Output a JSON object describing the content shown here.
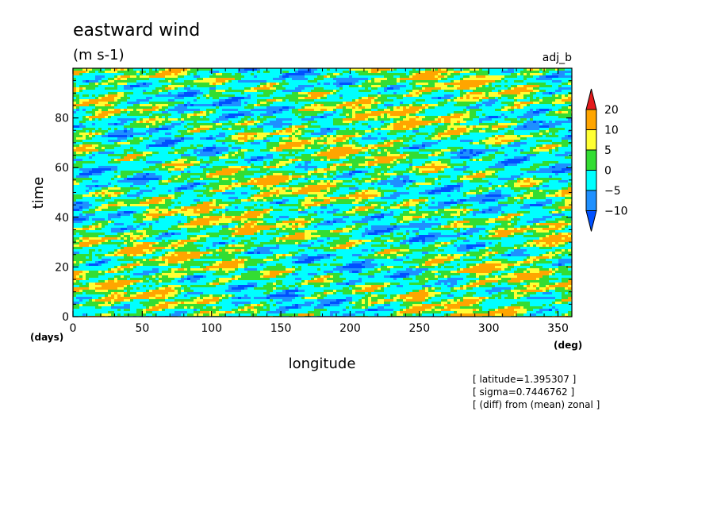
{
  "chart_data": {
    "type": "heatmap",
    "title": "eastward wind",
    "units": "(m s-1)",
    "dataset_label": "adj_b",
    "xlabel": "longitude",
    "x_unit": "(deg)",
    "ylabel": "time",
    "y_unit": "(days)",
    "xlim": [
      0,
      360
    ],
    "ylim": [
      0,
      100
    ],
    "x_ticks": [
      0,
      50,
      100,
      150,
      200,
      250,
      300,
      350
    ],
    "y_ticks": [
      0,
      20,
      40,
      60,
      80
    ],
    "colorbar": {
      "levels": [
        "20",
        "10",
        "5",
        "0",
        "-5",
        "-10"
      ],
      "colors": [
        "#e41a1c",
        "#ffa500",
        "#ffff33",
        "#33dd33",
        "#00ffff",
        "#1e90ff",
        "#0050ff"
      ]
    },
    "annotations": [
      "[ latitude=1.395307 ]",
      "[ sigma=0.7446762 ]",
      "[ (diff) from (mean) zonal ]"
    ]
  }
}
